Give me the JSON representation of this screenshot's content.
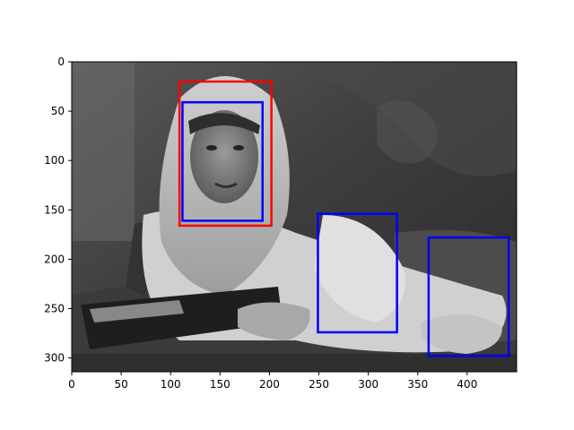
{
  "figure": {
    "x_ticks": [
      "0",
      "50",
      "100",
      "150",
      "200",
      "250",
      "300",
      "350",
      "400"
    ],
    "y_ticks": [
      "0",
      "50",
      "100",
      "150",
      "200",
      "250",
      "300"
    ],
    "xlim": [
      0,
      450
    ],
    "ylim": [
      0,
      314
    ],
    "x_tick_values": [
      0,
      50,
      100,
      150,
      200,
      250,
      300,
      350,
      400
    ],
    "y_tick_values": [
      0,
      50,
      100,
      150,
      200,
      250,
      300
    ],
    "photo": {
      "subject": "grayscale photograph of a woman in a light headscarf reclining on a patterned sofa, holding an open book"
    },
    "boxes": [
      {
        "label": "red-box",
        "color": "#ff0000",
        "x0": 109,
        "y0": 20,
        "x1": 202,
        "y1": 166
      },
      {
        "label": "blue-box-1",
        "color": "#0000ff",
        "x0": 112,
        "y0": 41,
        "x1": 193,
        "y1": 161
      },
      {
        "label": "blue-box-2",
        "color": "#0000ff",
        "x0": 249,
        "y0": 154,
        "x1": 329,
        "y1": 274
      },
      {
        "label": "blue-box-3",
        "color": "#0000ff",
        "x0": 361,
        "y0": 178,
        "x1": 442,
        "y1": 298
      }
    ]
  }
}
